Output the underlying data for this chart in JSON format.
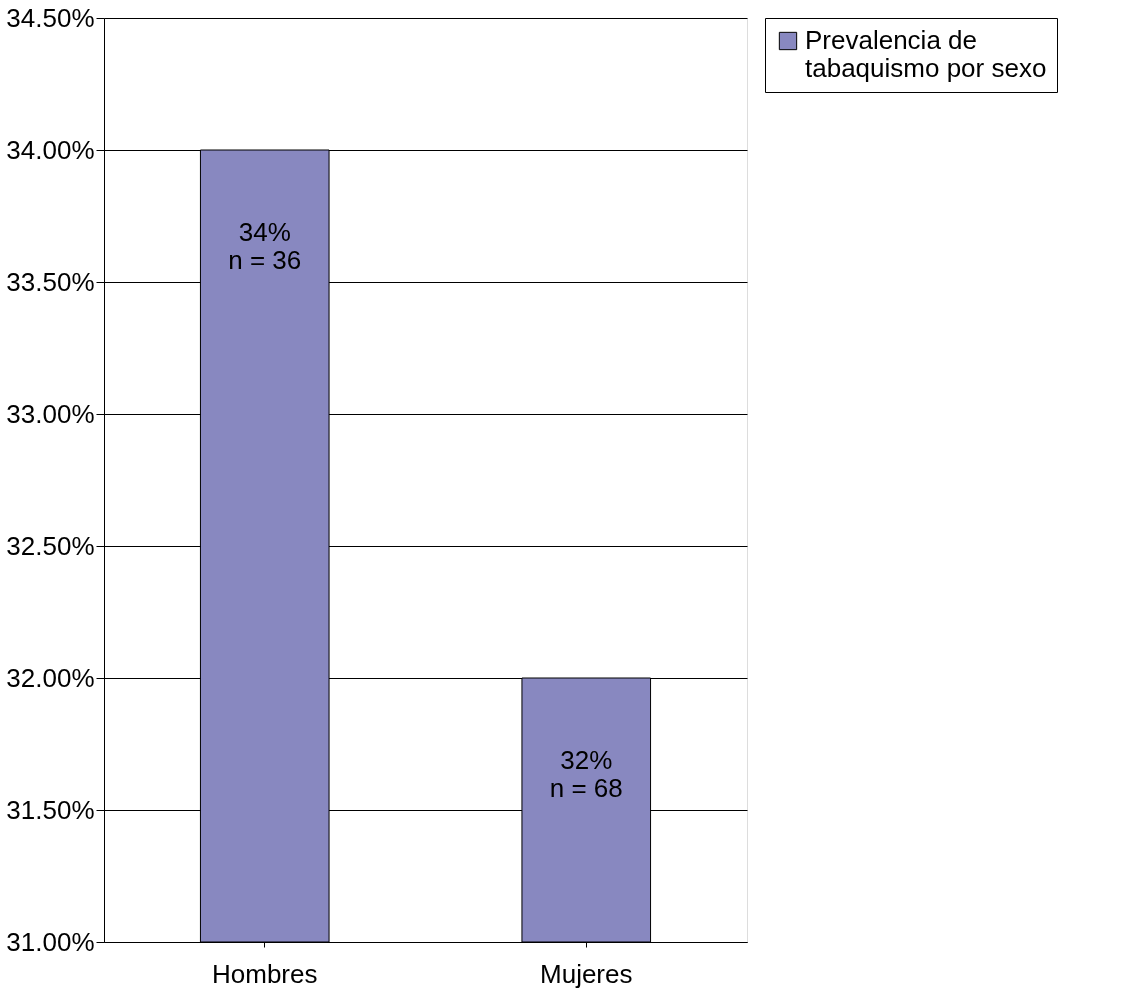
{
  "chart_data": {
    "type": "bar",
    "categories": [
      "Hombres",
      "Mujeres"
    ],
    "series": [
      {
        "name": "Prevalencia de tabaquismo por sexo",
        "color": "#8888c0",
        "values": [
          34.0,
          32.0
        ],
        "value_labels": [
          "34%\nn = 36",
          "32%\nn = 68"
        ]
      }
    ],
    "ylim": [
      31,
      34.5
    ],
    "yticks": [
      {
        "value": 31,
        "label": "31.00%"
      },
      {
        "value": 31.5,
        "label": "31.50%"
      },
      {
        "value": 32,
        "label": "32.00%"
      },
      {
        "value": 32.5,
        "label": "32.50%"
      },
      {
        "value": 33,
        "label": "33.00%"
      },
      {
        "value": 33.5,
        "label": "33.50%"
      },
      {
        "value": 34,
        "label": "34.00%"
      },
      {
        "value": 34.5,
        "label": "34.50%"
      }
    ],
    "grid": "y",
    "legend": "right"
  }
}
